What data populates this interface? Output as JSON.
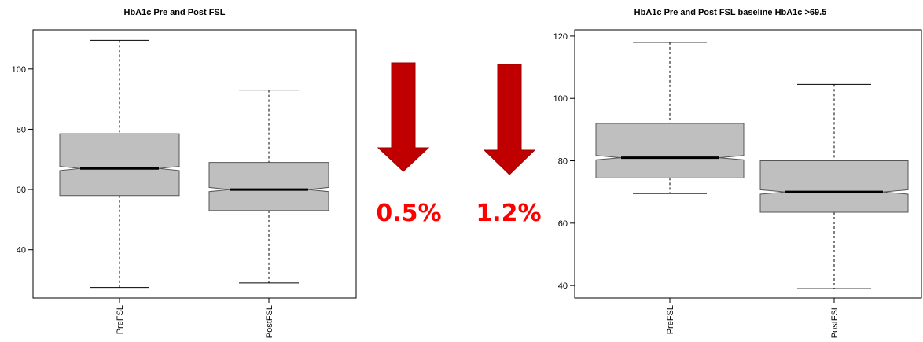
{
  "chart_data": [
    {
      "type": "boxplot",
      "title": "HbA1c Pre and Post FSL",
      "xlabel": "",
      "ylabel": "",
      "ylim": [
        24,
        113
      ],
      "yticks": [
        40,
        60,
        80,
        100
      ],
      "notched": true,
      "grid": false,
      "categories": [
        "PreFSL",
        "PostFSL"
      ],
      "boxes": [
        {
          "category": "PreFSL",
          "min": 27.5,
          "q1": 58,
          "median": 67,
          "q3": 78.5,
          "max": 109.5,
          "notch_low": 66.3,
          "notch_high": 67.7
        },
        {
          "category": "PostFSL",
          "min": 29,
          "q1": 53,
          "median": 60,
          "q3": 69,
          "max": 93,
          "notch_low": 59.3,
          "notch_high": 60.7
        }
      ]
    },
    {
      "type": "boxplot",
      "title": "HbA1c Pre and Post FSL baseline HbA1c >69.5",
      "xlabel": "",
      "ylabel": "",
      "ylim": [
        36,
        122
      ],
      "yticks": [
        40,
        60,
        80,
        100,
        120
      ],
      "notched": true,
      "grid": false,
      "categories": [
        "PreFSL",
        "PostFSL"
      ],
      "boxes": [
        {
          "category": "PreFSL",
          "min": 69.5,
          "q1": 74.5,
          "median": 81,
          "q3": 92,
          "max": 118,
          "notch_low": 80.3,
          "notch_high": 81.7
        },
        {
          "category": "PostFSL",
          "min": 39,
          "q1": 63.5,
          "median": 70,
          "q3": 80,
          "max": 104.5,
          "notch_low": 69.3,
          "notch_high": 70.7
        }
      ]
    }
  ],
  "annotations": [
    {
      "label": "0.5%",
      "color": "#ff0000",
      "arrow_color": "#c00000",
      "arrow": "down-arrow-icon"
    },
    {
      "label": "1.2%",
      "color": "#ff0000",
      "arrow_color": "#c00000",
      "arrow": "down-arrow-icon"
    }
  ],
  "colors": {
    "box_fill": "#bfbfbf",
    "box_stroke": "#555555",
    "median": "#000000"
  }
}
